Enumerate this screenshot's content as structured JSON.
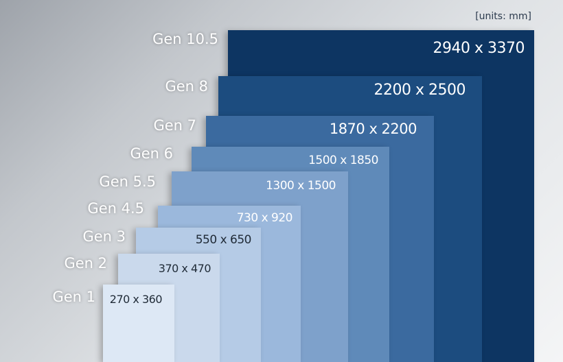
{
  "units_note": "[units: mm]",
  "generations": [
    {
      "gen": "Gen 10.5",
      "size": "2940 x 3370",
      "color": "#0d3562",
      "text_color": "#ffffff"
    },
    {
      "gen": "Gen 8",
      "size": "2200 x 2500",
      "color": "#1c4c7f",
      "text_color": "#ffffff"
    },
    {
      "gen": "Gen 7",
      "size": "1870 x 2200",
      "color": "#3b6a9f",
      "text_color": "#ffffff"
    },
    {
      "gen": "Gen 6",
      "size": "1500 x 1850",
      "color": "#5f8ab9",
      "text_color": "#ffffff"
    },
    {
      "gen": "Gen 5.5",
      "size": "1300 x 1500",
      "color": "#7ea1cb",
      "text_color": "#ffffff"
    },
    {
      "gen": "Gen 4.5",
      "size": "730 x 920",
      "color": "#9bb8dc",
      "text_color": "#ffffff"
    },
    {
      "gen": "Gen 3",
      "size": "550 x 650",
      "color": "#b5cbe6",
      "text_color": "#1f2a36"
    },
    {
      "gen": "Gen 2",
      "size": "370 x 470",
      "color": "#cad9ec",
      "text_color": "#1f2a36"
    },
    {
      "gen": "Gen 1",
      "size": "270 x 360",
      "color": "#dde8f5",
      "text_color": "#1f2a36"
    }
  ]
}
